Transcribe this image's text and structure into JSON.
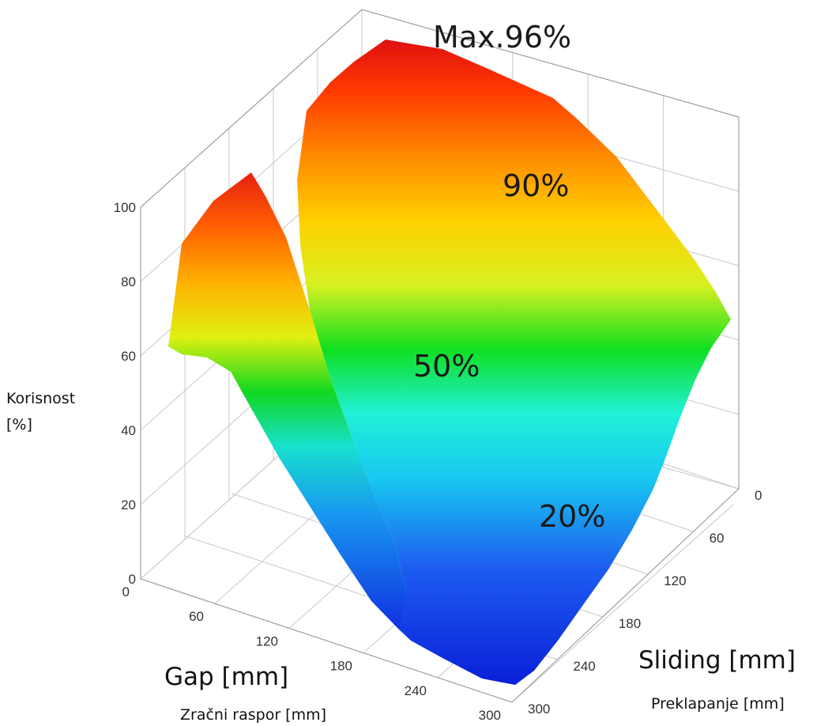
{
  "chart_data": {
    "type": "surface3d",
    "title": "",
    "annotations": [
      "Max.96%",
      "90%",
      "50%",
      "20%"
    ],
    "zlabel": [
      "Korisnost",
      "[%]"
    ],
    "xlabel": "Gap [mm]",
    "xlabel_sub": "Zračni raspor [mm]",
    "ylabel": "Sliding [mm]",
    "ylabel_sub": "Preklapanje [mm]",
    "z_ticks": [
      "0",
      "20",
      "40",
      "60",
      "80",
      "100"
    ],
    "gap_ticks": [
      "0",
      "60",
      "120",
      "180",
      "240",
      "300"
    ],
    "sliding_ticks": [
      "0",
      "60",
      "120",
      "180",
      "240",
      "300"
    ],
    "zlim": [
      0,
      100
    ],
    "gap_range": [
      0,
      300
    ],
    "sliding_range": [
      0,
      300
    ],
    "colormap": "jet",
    "grid": true,
    "max_value": 96
  }
}
